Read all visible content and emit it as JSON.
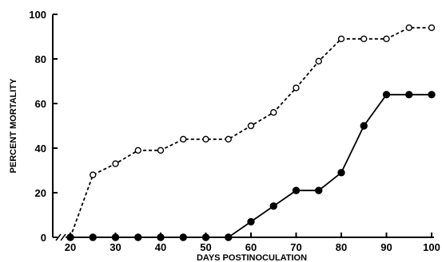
{
  "chart_data": {
    "type": "line",
    "title": "",
    "xlabel": "DAYS POSTINOCULATION",
    "ylabel": "PERCENT MORTALITY",
    "xlim": [
      20,
      100
    ],
    "ylim": [
      0,
      100
    ],
    "x_axis_break": true,
    "x_ticks": [
      20,
      30,
      40,
      50,
      60,
      70,
      80,
      90,
      100
    ],
    "y_ticks": [
      0,
      20,
      40,
      60,
      80,
      100
    ],
    "grid": false,
    "legend": "none",
    "series": [
      {
        "marker": "open-circle",
        "line_style": "dashed",
        "color": "#000000",
        "x": [
          20,
          25,
          30,
          35,
          40,
          45,
          50,
          55,
          60,
          65,
          70,
          75,
          80,
          85,
          90,
          95,
          100
        ],
        "y": [
          0,
          28,
          33,
          39,
          39,
          44,
          44,
          44,
          50,
          56,
          67,
          79,
          89,
          89,
          89,
          94,
          94
        ]
      },
      {
        "marker": "filled-circle",
        "line_style": "solid",
        "color": "#000000",
        "x": [
          20,
          25,
          30,
          35,
          40,
          45,
          50,
          55,
          60,
          65,
          70,
          75,
          80,
          85,
          90,
          95,
          100
        ],
        "y": [
          0,
          0,
          0,
          0,
          0,
          0,
          0,
          0,
          7,
          14,
          21,
          21,
          29,
          50,
          64,
          64,
          64
        ]
      }
    ]
  }
}
